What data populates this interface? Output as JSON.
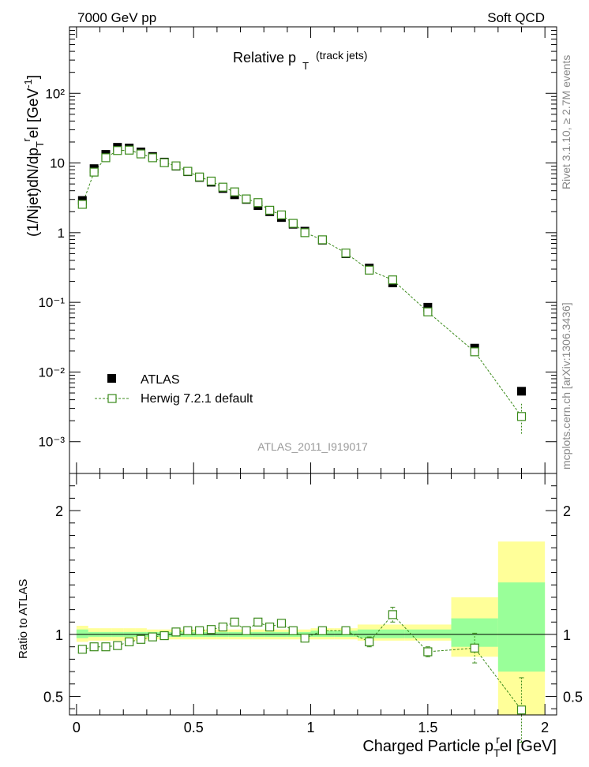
{
  "header": {
    "left": "7000 GeV pp",
    "right": "Soft QCD"
  },
  "side_text": {
    "rivet": "Rivet 3.1.10, ≥ 2.7M events",
    "mcplots": "mcplots.cern.ch [arXiv:1306.3436]"
  },
  "analysis_id": "ATLAS_2011_I919017",
  "colors": {
    "data": "#000000",
    "mc": "#3a8a1a",
    "band_outer": "#ffff99",
    "band_inner": "#99ff99"
  },
  "chart_data": [
    {
      "type": "scatter",
      "title": "Relative p_T (track jets)",
      "title_main": "Relative p",
      "title_sub": "T",
      "title_suffix": "(track jets)",
      "ylabel": "(1/Njet)dN/dp_T^rel [GeV^-1]",
      "yscale": "log",
      "xlim": [
        -0.03,
        2.05
      ],
      "ylim": [
        0.00035,
        900
      ],
      "ytick_labels": [
        "10⁻³",
        "10⁻²",
        "10⁻¹",
        "1",
        "10",
        "10²"
      ],
      "legend": {
        "position": "lower-left",
        "entries": [
          "ATLAS",
          "Herwig 7.2.1 default"
        ]
      },
      "series": [
        {
          "name": "ATLAS",
          "marker": "filled-square",
          "x": [
            0.025,
            0.075,
            0.125,
            0.175,
            0.225,
            0.275,
            0.325,
            0.375,
            0.425,
            0.475,
            0.525,
            0.575,
            0.625,
            0.675,
            0.725,
            0.775,
            0.825,
            0.875,
            0.925,
            0.975,
            1.05,
            1.15,
            1.25,
            1.35,
            1.5,
            1.7,
            1.9
          ],
          "y": [
            2.9,
            8.3,
            13.3,
            16.8,
            16.4,
            14.4,
            12.4,
            10.3,
            9.0,
            7.5,
            6.2,
            5.3,
            4.3,
            3.5,
            3.0,
            2.45,
            2.0,
            1.65,
            1.32,
            1.05,
            0.78,
            0.5,
            0.31,
            0.19,
            0.085,
            0.022,
            0.0053
          ]
        },
        {
          "name": "Herwig 7.2.1 default",
          "marker": "open-square",
          "line": "dashed",
          "x": [
            0.025,
            0.075,
            0.125,
            0.175,
            0.225,
            0.275,
            0.325,
            0.375,
            0.425,
            0.475,
            0.525,
            0.575,
            0.625,
            0.675,
            0.725,
            0.775,
            0.825,
            0.875,
            0.925,
            0.975,
            1.05,
            1.15,
            1.25,
            1.35,
            1.5,
            1.7,
            1.9
          ],
          "y": [
            2.55,
            7.4,
            11.9,
            15.1,
            15.3,
            13.5,
            11.9,
            10.1,
            9.1,
            7.6,
            6.3,
            5.5,
            4.5,
            3.85,
            3.05,
            2.7,
            2.1,
            1.8,
            1.36,
            1.0,
            0.79,
            0.51,
            0.29,
            0.21,
            0.073,
            0.0195,
            0.0023
          ],
          "y_err_low": [
            0.0,
            0.0,
            0.0,
            0.0,
            0.0,
            0.0,
            0.0,
            0.0,
            0.0,
            0.0,
            0.0,
            0.0,
            0.0,
            0.0,
            0.0,
            0.0,
            0.0,
            0.0,
            0.0,
            0.0,
            0.0,
            0.0,
            0.0,
            0.0,
            0.0,
            0.0,
            0.001
          ],
          "y_err_high": [
            0.0,
            0.0,
            0.0,
            0.0,
            0.0,
            0.0,
            0.0,
            0.0,
            0.0,
            0.0,
            0.0,
            0.0,
            0.0,
            0.0,
            0.0,
            0.0,
            0.0,
            0.0,
            0.0,
            0.0,
            0.0,
            0.0,
            0.0,
            0.0,
            0.0,
            0.0,
            0.0012
          ]
        }
      ]
    },
    {
      "type": "scatter",
      "ylabel": "Ratio to ATLAS",
      "xlabel": "Charged Particle p_T^rel [GeV]",
      "xlabel_main": "Charged Particle p",
      "xlabel_sub": "T",
      "xlabel_sup": "r",
      "xlabel_rest": "el [GeV]",
      "xlim": [
        -0.03,
        2.05
      ],
      "ylim": [
        0.35,
        2.3
      ],
      "x_ticks": [
        0,
        0.5,
        1,
        1.5,
        2
      ],
      "x_tick_labels": [
        "0",
        "0.5",
        "1",
        "1.5",
        "2"
      ],
      "y_ticks": [
        0.5,
        1,
        2
      ],
      "y_tick_labels": [
        "0.5",
        "1",
        "2"
      ],
      "bands": {
        "bin_edges": [
          0.0,
          0.05,
          0.1,
          0.15,
          0.2,
          0.25,
          0.3,
          0.35,
          0.4,
          0.45,
          0.5,
          0.55,
          0.6,
          0.65,
          0.7,
          0.75,
          0.8,
          0.85,
          0.9,
          0.95,
          1.0,
          1.1,
          1.2,
          1.3,
          1.4,
          1.6,
          1.8,
          2.0
        ],
        "outer_low": [
          0.94,
          0.95,
          0.95,
          0.95,
          0.95,
          0.95,
          0.96,
          0.96,
          0.96,
          0.96,
          0.96,
          0.96,
          0.96,
          0.96,
          0.96,
          0.96,
          0.96,
          0.96,
          0.96,
          0.96,
          0.96,
          0.96,
          0.95,
          0.95,
          0.95,
          0.82,
          0.35
        ],
        "outer_high": [
          1.07,
          1.05,
          1.05,
          1.05,
          1.05,
          1.05,
          1.04,
          1.04,
          1.04,
          1.04,
          1.04,
          1.04,
          1.04,
          1.04,
          1.04,
          1.04,
          1.04,
          1.04,
          1.04,
          1.04,
          1.05,
          1.05,
          1.08,
          1.08,
          1.08,
          1.3,
          1.75
        ],
        "inner_low": [
          0.97,
          0.98,
          0.98,
          0.98,
          0.98,
          0.98,
          0.98,
          0.98,
          0.98,
          0.98,
          0.98,
          0.98,
          0.98,
          0.98,
          0.98,
          0.98,
          0.98,
          0.98,
          0.98,
          0.98,
          0.98,
          0.98,
          0.97,
          0.97,
          0.97,
          0.9,
          0.7
        ],
        "inner_high": [
          1.04,
          1.02,
          1.02,
          1.02,
          1.02,
          1.02,
          1.02,
          1.02,
          1.02,
          1.02,
          1.02,
          1.02,
          1.02,
          1.02,
          1.02,
          1.02,
          1.02,
          1.02,
          1.02,
          1.02,
          1.03,
          1.03,
          1.04,
          1.04,
          1.04,
          1.13,
          1.42
        ]
      },
      "series": [
        {
          "name": "Herwig 7.2.1 default",
          "marker": "open-square",
          "line": "dashed",
          "x": [
            0.025,
            0.075,
            0.125,
            0.175,
            0.225,
            0.275,
            0.325,
            0.375,
            0.425,
            0.475,
            0.525,
            0.575,
            0.625,
            0.675,
            0.725,
            0.775,
            0.825,
            0.875,
            0.925,
            0.975,
            1.05,
            1.15,
            1.25,
            1.35,
            1.5,
            1.7,
            1.9
          ],
          "y": [
            0.88,
            0.9,
            0.9,
            0.91,
            0.94,
            0.96,
            0.98,
            0.99,
            1.02,
            1.03,
            1.03,
            1.04,
            1.06,
            1.1,
            1.03,
            1.1,
            1.06,
            1.09,
            1.03,
            0.97,
            1.03,
            1.03,
            0.94,
            1.16,
            0.86,
            0.89,
            0.39
          ],
          "y_err": [
            0.0,
            0.0,
            0.0,
            0.0,
            0.0,
            0.0,
            0.0,
            0.0,
            0.0,
            0.0,
            0.0,
            0.0,
            0.0,
            0.0,
            0.0,
            0.0,
            0.0,
            0.0,
            0.0,
            0.0,
            0.0,
            0.03,
            0.04,
            0.06,
            0.04,
            0.12,
            0.26
          ]
        }
      ]
    }
  ]
}
